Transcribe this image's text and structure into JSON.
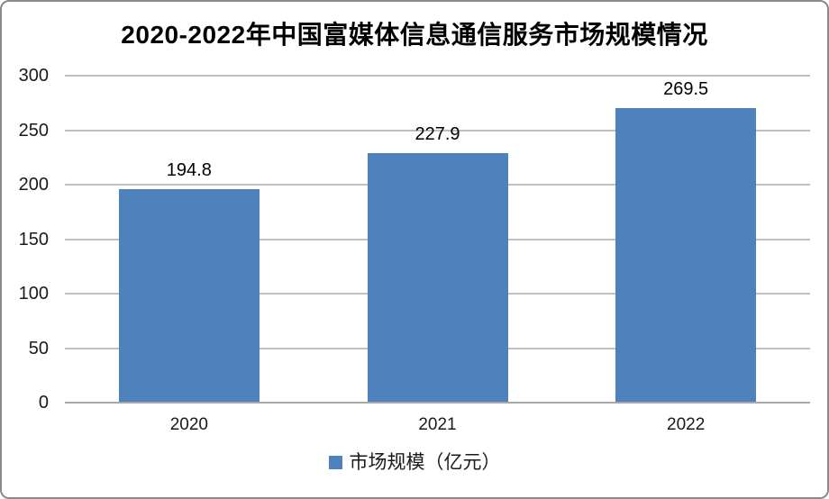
{
  "chart_data": {
    "type": "bar",
    "title": "2020-2022年中国富媒体信息通信服务市场规模情况",
    "categories": [
      "2020",
      "2021",
      "2022"
    ],
    "values": [
      194.8,
      227.9,
      269.5
    ],
    "value_labels": [
      "194.8",
      "227.9",
      "269.5"
    ],
    "ylim": [
      0,
      300
    ],
    "yticks": [
      0,
      50,
      100,
      150,
      200,
      250,
      300
    ],
    "grid": "horizontal",
    "legend_position": "bottom",
    "legend": [
      {
        "label": "市场规模（亿元）",
        "color": "#4F81BD"
      }
    ],
    "bar_color": "#4F81BD"
  },
  "colors": {
    "bar": "#4F81BD",
    "gridline": "#BFBFBF",
    "zero_line": "#A8A8A8",
    "frame_border": "#8A8A8A",
    "text": "#000000"
  }
}
